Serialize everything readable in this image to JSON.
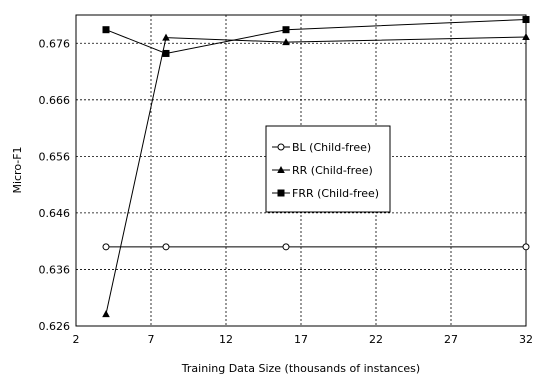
{
  "chart_data": {
    "type": "line",
    "title": "",
    "xlabel": "Training Data Size (thousands of instances)",
    "ylabel": "Micro-F1",
    "xlim": [
      2,
      32
    ],
    "ylim": [
      0.626,
      0.681
    ],
    "xticks": [
      2,
      7,
      12,
      17,
      22,
      27,
      32
    ],
    "yticks": [
      0.626,
      0.636,
      0.646,
      0.656,
      0.666,
      0.676
    ],
    "xtick_labels": [
      "2",
      "7",
      "12",
      "17",
      "22",
      "27",
      "32"
    ],
    "ytick_labels": [
      "0.626",
      "0.636",
      "0.646",
      "0.656",
      "0.666",
      "0.676"
    ],
    "grid": "dashed",
    "legend_position": "center",
    "x": [
      4,
      8,
      16,
      32
    ],
    "series": [
      {
        "name": "BL (Child-free)",
        "marker": "open-circle",
        "values": [
          0.64,
          0.64,
          0.64,
          0.64
        ]
      },
      {
        "name": "RR (Child-free)",
        "marker": "filled-triangle",
        "values": [
          0.6281,
          0.677,
          0.6762,
          0.6771
        ]
      },
      {
        "name": "FRR (Child-free)",
        "marker": "filled-square",
        "values": [
          0.6784,
          0.6742,
          0.6784,
          0.6802
        ]
      }
    ]
  }
}
